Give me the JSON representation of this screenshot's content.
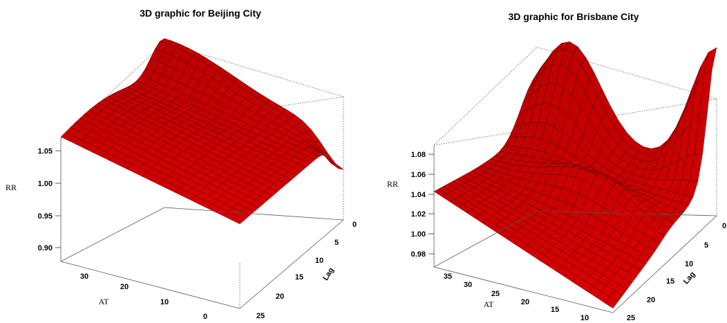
{
  "chart_data": [
    {
      "type": "surface3d",
      "title": "3D graphic for Beijing City",
      "xlabel": "AT",
      "ylabel": "Lag",
      "zlabel": "RR",
      "x_ticks": [
        "30",
        "20",
        "10",
        "0"
      ],
      "y_ticks": [
        "0",
        "5",
        "10",
        "15",
        "20",
        "25"
      ],
      "z_ticks": [
        "1.05",
        "1.00",
        "0.95",
        "0.90"
      ],
      "xlim": [
        -5,
        38
      ],
      "ylim": [
        0,
        27
      ],
      "zlim": [
        0.88,
        1.065
      ],
      "surface_color": "#c00000",
      "corner_values": [
        {
          "AT": 38,
          "Lag": 0,
          "RR": 1.065
        },
        {
          "AT": 38,
          "Lag": 27,
          "RR": 1.02
        },
        {
          "AT": -5,
          "Lag": 27,
          "RR": 0.97
        },
        {
          "AT": -5,
          "Lag": 0,
          "RR": 0.965
        }
      ]
    },
    {
      "type": "surface3d",
      "title": "3D graphic for Brisbane City",
      "xlabel": "AT",
      "ylabel": "Lag",
      "zlabel": "RR",
      "x_ticks": [
        "35",
        "30",
        "25",
        "20",
        "15",
        "10"
      ],
      "y_ticks": [
        "0",
        "5",
        "10",
        "15",
        "20",
        "25"
      ],
      "z_ticks": [
        "1.08",
        "1.06",
        "1.04",
        "1.02",
        "1.00",
        "0.98"
      ],
      "xlim": [
        8,
        37
      ],
      "ylim": [
        0,
        27
      ],
      "zlim": [
        0.975,
        1.09
      ],
      "surface_color": "#c00000",
      "corner_values": [
        {
          "AT": 37,
          "Lag": 0,
          "RR": 1.09
        },
        {
          "AT": 37,
          "Lag": 27,
          "RR": 1.028
        },
        {
          "AT": 8,
          "Lag": 27,
          "RR": 0.975
        },
        {
          "AT": 8,
          "Lag": 0,
          "RR": 1.09
        }
      ]
    }
  ]
}
